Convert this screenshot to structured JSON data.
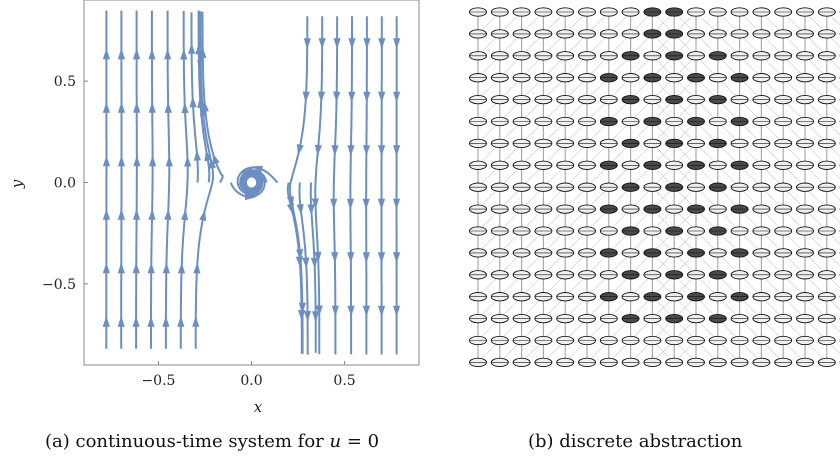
{
  "figure": {
    "panel_a": {
      "caption_prefix": "(a) continuous-time system for ",
      "caption_math": "u",
      "caption_suffix": " = 0",
      "plot": {
        "xlabel": "x",
        "ylabel": "y",
        "xticks": [
          "−0.5",
          "0.0",
          "0.5"
        ],
        "yticks": [
          "0.5",
          "0.0",
          "−0.5"
        ],
        "stream_color": "#6b8fc2",
        "frame_color": "#888888"
      }
    },
    "panel_b": {
      "caption": "(b) discrete abstraction",
      "node_fill_light": "#f0f0f0",
      "node_fill_dark": "#4a4a4a",
      "edge_color": "#888888"
    }
  },
  "chart_data": {
    "type": "streamplot",
    "title": "",
    "xlabel": "x",
    "ylabel": "y",
    "xlim": [
      -0.9,
      0.9
    ],
    "ylim": [
      -0.9,
      0.9
    ],
    "xticks": [
      -0.5,
      0.0,
      0.5
    ],
    "yticks": [
      -0.5,
      0.0,
      0.5
    ],
    "grid": false,
    "series": [
      {
        "field": "spiral around origin; upward flow for x < -0.25, downward flow for x > 0.25"
      }
    ]
  }
}
